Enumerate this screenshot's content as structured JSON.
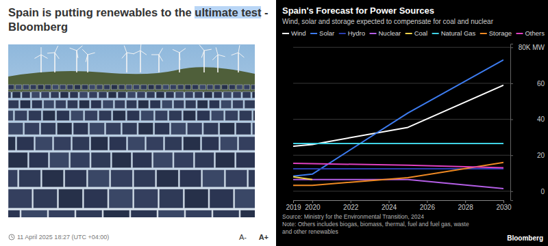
{
  "article": {
    "headline_lines": [
      [
        {
          "text": "Spain is putting renewables to the ",
          "highlighted": false
        },
        {
          "text": "ultimate test",
          "highlighted": true
        },
        {
          "text": " -",
          "highlighted": false
        }
      ],
      [
        {
          "text": "Bloomberg",
          "highlighted": false
        }
      ]
    ],
    "date": "11 April 2025 18:27 (UTC +04:00)",
    "font_controls": [
      "A-",
      "A+"
    ]
  },
  "chart_data": {
    "type": "line",
    "title": "Spain's Forecast for Power Sources",
    "subtitle": "Wind, solar and storage expected to compensate for coal and nuclear",
    "x": [
      2019,
      2020,
      2025,
      2030
    ],
    "xlim": [
      2019,
      2030
    ],
    "xticks": [
      2019,
      2020,
      2022,
      2024,
      2026,
      2028,
      2030
    ],
    "ylim": [
      -5,
      82
    ],
    "yticks": [
      0,
      20,
      40,
      60,
      {
        "value": 80,
        "label": "80K MW"
      }
    ],
    "grid": true,
    "legend": "top",
    "series": [
      {
        "name": "Wind",
        "color": "#ffffff",
        "values": [
          25,
          26,
          35.5,
          59
        ]
      },
      {
        "name": "Solar",
        "color": "#3d7cf0",
        "values": [
          8.4,
          9.5,
          43.5,
          73
        ]
      },
      {
        "name": "Hydro",
        "color": "#2a3db0",
        "values": [
          12.5,
          12.5,
          12.5,
          12.5
        ]
      },
      {
        "name": "Nuclear",
        "color": "#b45ee6",
        "values": [
          6.5,
          6.5,
          6.5,
          1.5
        ]
      },
      {
        "name": "Coal",
        "color": "#f2d34b",
        "values": [
          8,
          6.5,
          null,
          null
        ]
      },
      {
        "name": "Natural Gas",
        "color": "#3fd3e6",
        "values": [
          26.5,
          26.5,
          26.5,
          26.5
        ]
      },
      {
        "name": "Storage",
        "color": "#f08a24",
        "values": [
          3.3,
          3.3,
          7.5,
          16
        ]
      },
      {
        "name": "Others",
        "color": "#e040c0",
        "values": [
          15.5,
          15.3,
          14.5,
          13
        ]
      }
    ],
    "notes": [
      "Source: Ministry for the Environmental Transition, 2024",
      "Note: Others includes biogas, biomass, thermal, fuel and fuel gas, waste",
      "and other renewables"
    ],
    "brand": "Bloomberg"
  }
}
